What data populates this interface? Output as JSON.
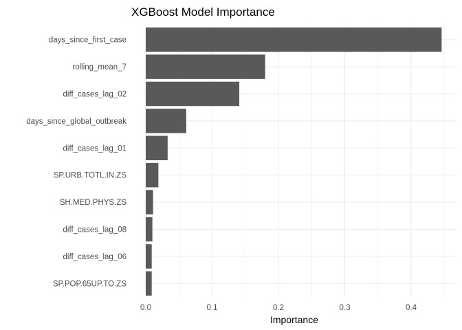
{
  "chart_data": {
    "type": "bar",
    "orientation": "horizontal",
    "title": "XGBoost Model Importance",
    "xlabel": "Importance",
    "ylabel": "",
    "categories": [
      "days_since_first_case",
      "rolling_mean_7",
      "diff_cases_lag_02",
      "days_since_global_outbreak",
      "diff_cases_lag_01",
      "SP.URB.TOTL.IN.ZS",
      "SH.MED.PHYS.ZS",
      "diff_cases_lag_08",
      "diff_cases_lag_06",
      "SP.POP.65UP.TO.ZS"
    ],
    "values": [
      0.446,
      0.18,
      0.141,
      0.061,
      0.033,
      0.019,
      0.011,
      0.01,
      0.009,
      0.009
    ],
    "xlim": [
      0,
      0.45
    ],
    "xticks": [
      0.0,
      0.1,
      0.2,
      0.3,
      0.4
    ],
    "xtick_labels": [
      "0.0",
      "0.1",
      "0.2",
      "0.3",
      "0.4"
    ],
    "bar_color": "#595959",
    "grid": true
  }
}
